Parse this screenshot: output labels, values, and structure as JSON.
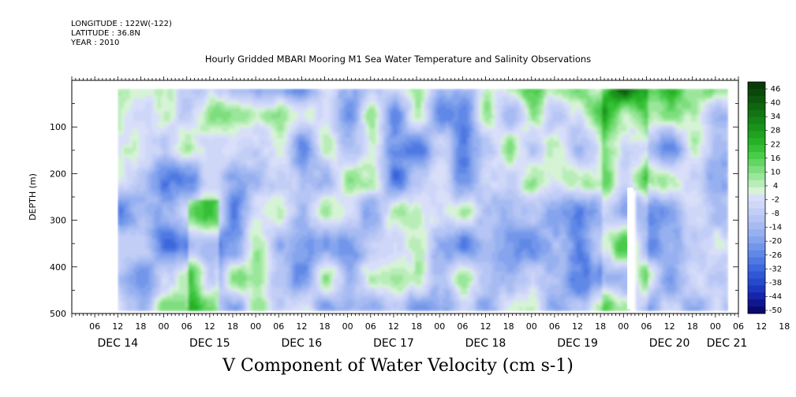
{
  "header": {
    "longitude": "LONGITUDE : 122W(-122)",
    "latitude": "LATITUDE : 36.8N",
    "year": "YEAR : 2010"
  },
  "chart_data": {
    "type": "heatmap",
    "title": "Hourly Gridded MBARI Mooring M1 Sea Water Temperature and Salinity Observations",
    "bottom_title": "V Component of Water Velocity (cm s-1)",
    "ylabel": "DEPTH (m)",
    "ylim": [
      500,
      0
    ],
    "y_ticks": [
      100,
      200,
      300,
      400,
      500
    ],
    "hour_ticks": [
      "06",
      "12",
      "18",
      "00",
      "06",
      "12",
      "18",
      "00",
      "06",
      "12",
      "18",
      "00",
      "06",
      "12",
      "18",
      "00",
      "06",
      "12",
      "18",
      "00",
      "06",
      "12",
      "18",
      "00",
      "06",
      "12",
      "18",
      "00",
      "06",
      "12",
      "18",
      "00",
      "06"
    ],
    "day_labels": [
      {
        "label": "DEC 14",
        "hour": 12
      },
      {
        "label": "DEC 15",
        "hour": 36
      },
      {
        "label": "DEC 16",
        "hour": 60
      },
      {
        "label": "DEC 17",
        "hour": 84
      },
      {
        "label": "DEC 18",
        "hour": 108
      },
      {
        "label": "DEC 19",
        "hour": 132
      },
      {
        "label": "DEC 20",
        "hour": 156
      },
      {
        "label": "DEC 21",
        "hour": 171
      }
    ],
    "colorbar": {
      "labels": [
        "46",
        "40",
        "34",
        "28",
        "22",
        "16",
        "10",
        "4",
        "-2",
        "-8",
        "-14",
        "-20",
        "-26",
        "-32",
        "-38",
        "-44",
        "-50"
      ],
      "levels_cm_s": [
        -50,
        -47,
        -44,
        -41,
        -38,
        -35,
        -32,
        -29,
        -26,
        -23,
        -20,
        -17,
        -14,
        -11,
        -8,
        -5,
        -2,
        1,
        4,
        7,
        10,
        13,
        16,
        19,
        22,
        25,
        28,
        31,
        34,
        37,
        40,
        43,
        46,
        49
      ],
      "colors": [
        "#0a0a6e",
        "#0f1690",
        "#1526aa",
        "#1d38bf",
        "#2649cc",
        "#3058d6",
        "#3e68dd",
        "#4f78e2",
        "#6088e6",
        "#7396ea",
        "#85a4ed",
        "#97b0f0",
        "#a7bbf2",
        "#b5c5f4",
        "#c2cef6",
        "#ced7f8",
        "#d9dff9",
        "#d6f3d6",
        "#b8edb8",
        "#9ae69a",
        "#7ede7e",
        "#63d563",
        "#4acb4a",
        "#34bf34",
        "#27b127",
        "#1fa21f",
        "#1a921a",
        "#168316",
        "#137413",
        "#106510",
        "#0d560d",
        "#0a480a",
        "#083a08"
      ]
    },
    "data_extent": {
      "start_hour": 12,
      "end_hour": 171
    },
    "data_gap": {
      "start_hour": 145,
      "end_hour": 146.5,
      "min_depth_m": 230
    },
    "field_description": "mostly weak negative (blue, -2 to -20) with patches of weak positive (green, 4 to 22); strong positive (dark green, 28 to 46) near surface from DEC 18 onward"
  }
}
